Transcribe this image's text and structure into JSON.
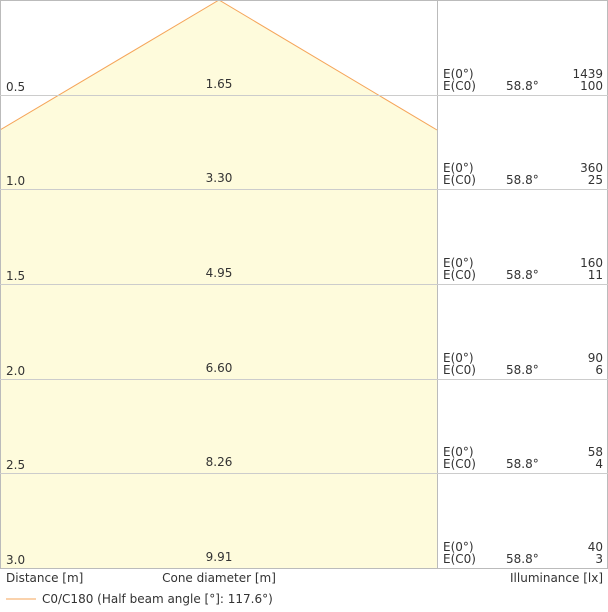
{
  "rows": [
    {
      "distance": "0.5",
      "diameter": "1.65",
      "e0_label": "E(0°)",
      "ec0_label": "E(C0)",
      "angle": "58.8°",
      "e0": "1439",
      "ec0": "100"
    },
    {
      "distance": "1.0",
      "diameter": "3.30",
      "e0_label": "E(0°)",
      "ec0_label": "E(C0)",
      "angle": "58.8°",
      "e0": "360",
      "ec0": "25"
    },
    {
      "distance": "1.5",
      "diameter": "4.95",
      "e0_label": "E(0°)",
      "ec0_label": "E(C0)",
      "angle": "58.8°",
      "e0": "160",
      "ec0": "11"
    },
    {
      "distance": "2.0",
      "diameter": "6.60",
      "e0_label": "E(0°)",
      "ec0_label": "E(C0)",
      "angle": "58.8°",
      "e0": "90",
      "ec0": "6"
    },
    {
      "distance": "2.5",
      "diameter": "8.26",
      "e0_label": "E(0°)",
      "ec0_label": "E(C0)",
      "angle": "58.8°",
      "e0": "58",
      "ec0": "4"
    },
    {
      "distance": "3.0",
      "diameter": "9.91",
      "e0_label": "E(0°)",
      "ec0_label": "E(C0)",
      "angle": "58.8°",
      "e0": "40",
      "ec0": "3"
    }
  ],
  "footer": {
    "distance_label": "Distance [m]",
    "diameter_label": "Cone diameter [m]",
    "illuminance_label": "Illuminance [lx]"
  },
  "legend": {
    "label": "C0/C180 (Half beam angle [°]: 117.6°)"
  }
}
